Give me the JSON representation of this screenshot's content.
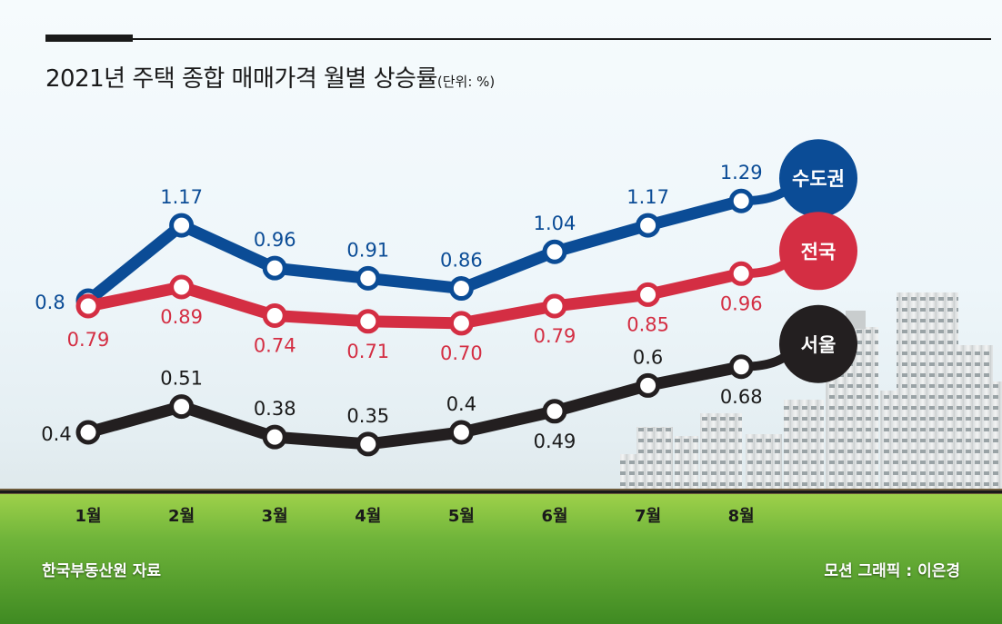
{
  "title": "2021년 주택 종합 매매가격 월별 상승률",
  "unit": "(단위: %)",
  "source": "한국부동산원 자료",
  "credit": "모션 그래픽 : 이은경",
  "colors": {
    "capital": "#0b4c96",
    "national": "#d42e43",
    "seoul": "#231f20"
  },
  "chart_data": {
    "type": "line",
    "title": "2021년 주택 종합 매매가격 월별 상승률",
    "ylabel": "(단위: %)",
    "categories": [
      "1월",
      "2월",
      "3월",
      "4월",
      "5월",
      "6월",
      "7월",
      "8월"
    ],
    "series": [
      {
        "name": "수도권",
        "values": [
          0.8,
          1.17,
          0.96,
          0.91,
          0.86,
          1.04,
          1.17,
          1.29
        ],
        "labels": [
          "0.8",
          "1.17",
          "0.96",
          "0.91",
          "0.86",
          "1.04",
          "1.17",
          "1.29"
        ]
      },
      {
        "name": "전국",
        "values": [
          0.79,
          0.89,
          0.74,
          0.71,
          0.7,
          0.79,
          0.85,
          0.96
        ],
        "labels": [
          "0.79",
          "0.89",
          "0.74",
          "0.71",
          "0.70",
          "0.79",
          "0.85",
          "0.96"
        ]
      },
      {
        "name": "서울",
        "values": [
          0.4,
          0.51,
          0.38,
          0.35,
          0.4,
          0.49,
          0.6,
          0.68
        ],
        "labels": [
          "0.4",
          "0.51",
          "0.38",
          "0.35",
          "0.4",
          "0.49",
          "0.6",
          "0.68"
        ]
      }
    ],
    "grid": false,
    "legend": "right"
  }
}
